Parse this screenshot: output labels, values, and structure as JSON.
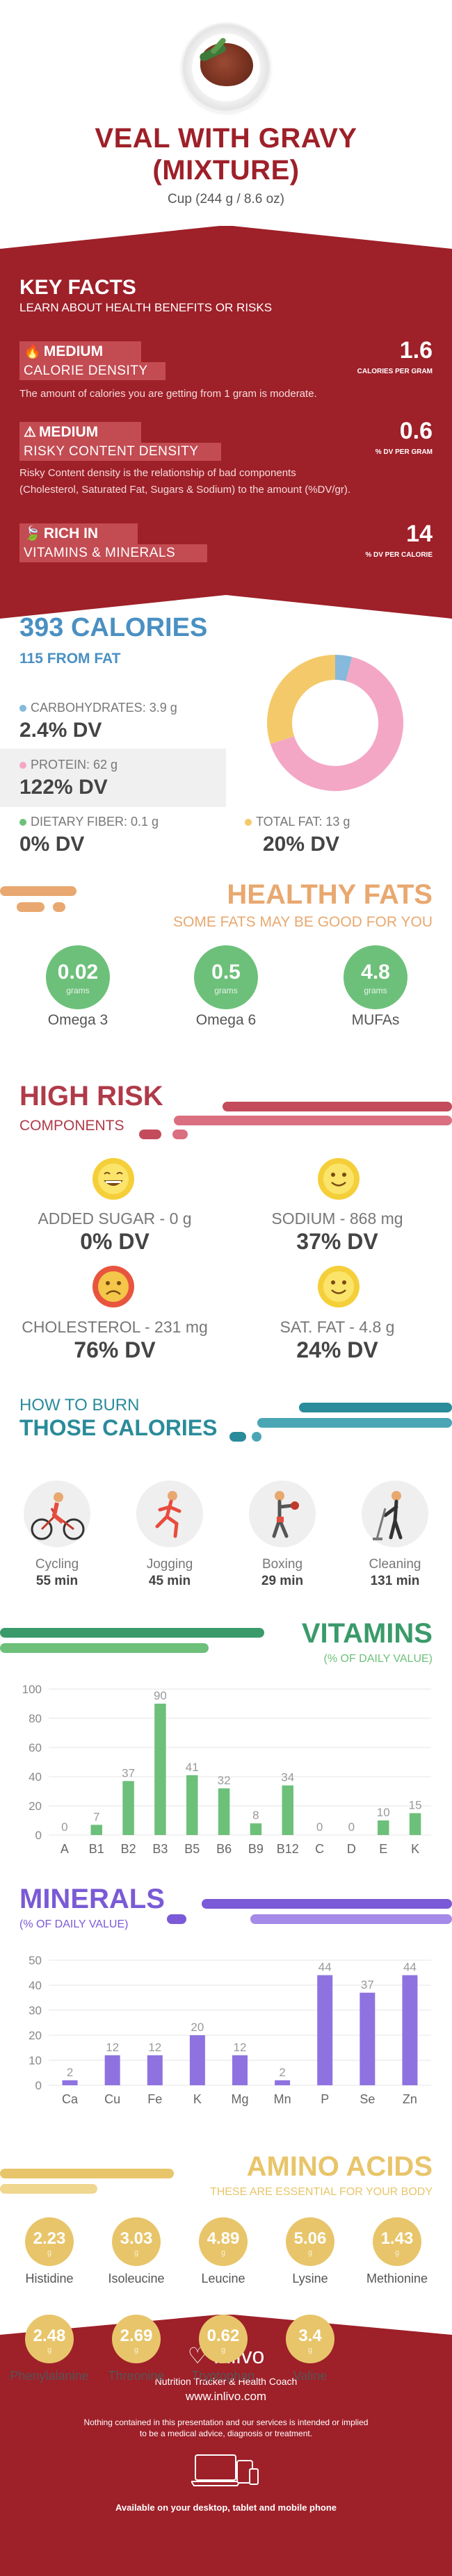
{
  "header": {
    "title_line1": "VEAL WITH GRAVY",
    "title_line2": "(MIXTURE)",
    "serving": "Cup (244 g / 8.6 oz)"
  },
  "key_facts": {
    "heading": "KEY FACTS",
    "subheading": "LEARN ABOUT HEALTH BENEFITS OR RISKS",
    "calorie_density": {
      "level": "MEDIUM",
      "label": "CALORIE DENSITY",
      "value": "1.6",
      "unit": "CALORIES PER GRAM",
      "desc": "The amount of calories you are getting from 1 gram is moderate."
    },
    "risky": {
      "level": "MEDIUM",
      "label": "RISKY CONTENT DENSITY",
      "value": "0.6",
      "unit": "% DV PER GRAM",
      "desc_line1": "Risky Content density is the relationship of bad components",
      "desc_line2": "(Cholesterol, Saturated Fat, Sugars & Sodium) to the amount (%DV/gr)."
    },
    "rich": {
      "level": "RICH  IN",
      "label": "VITAMINS & MINERALS",
      "value": "14",
      "unit": "% DV PER CALORIE"
    }
  },
  "calories": {
    "total": "393 CALORIES",
    "from_fat": "115 FROM FAT",
    "carbs_label": "CARBOHYDRATES: 3.9 g",
    "carbs_dv": "2.4% DV",
    "protein_label": "PROTEIN: 62 g",
    "protein_dv": "122% DV",
    "fiber_label": "DIETARY FIBER: 0.1 g",
    "fiber_dv": "0% DV",
    "fat_label": "TOTAL FAT: 13 g",
    "fat_dv": "20% DV",
    "donut_fractions": {
      "carbs": 0.04,
      "protein": 0.66,
      "fat": 0.3
    },
    "colors": {
      "carbs": "#86b9dc",
      "protein": "#f4a7c5",
      "fiber": "#6dc07a",
      "fat": "#f4c96a"
    }
  },
  "healthy_fats": {
    "title": "HEALTHY FATS",
    "subtitle": "SOME FATS MAY BE GOOD FOR YOU",
    "items": [
      {
        "value": "0.02",
        "unit": "grams",
        "name": "Omega 3"
      },
      {
        "value": "0.5",
        "unit": "grams",
        "name": "Omega 6"
      },
      {
        "value": "4.8",
        "unit": "grams",
        "name": "MUFAs"
      }
    ]
  },
  "high_risk": {
    "title": "HIGH RISK",
    "subtitle": "COMPONENTS",
    "items": [
      {
        "label": "ADDED SUGAR - 0 g",
        "dv": "0% DV",
        "mood": "happy"
      },
      {
        "label": "SODIUM - 868 mg",
        "dv": "37% DV",
        "mood": "smile"
      },
      {
        "label": "CHOLESTEROL - 231 mg",
        "dv": "76% DV",
        "mood": "sad"
      },
      {
        "label": "SAT. FAT - 4.8 g",
        "dv": "24% DV",
        "mood": "smile"
      }
    ]
  },
  "burn": {
    "title_line1": "HOW TO BURN",
    "title_line2": "THOSE CALORIES",
    "items": [
      {
        "name": "Cycling",
        "minutes": "55 min",
        "icon": "cycling-icon"
      },
      {
        "name": "Jogging",
        "minutes": "45 min",
        "icon": "jogging-icon"
      },
      {
        "name": "Boxing",
        "minutes": "29 min",
        "icon": "boxing-icon"
      },
      {
        "name": "Cleaning",
        "minutes": "131 min",
        "icon": "cleaning-icon"
      }
    ]
  },
  "vitamins": {
    "title": "VITAMINS",
    "subtitle": "(% OF DAILY VALUE)"
  },
  "minerals": {
    "title": "MINERALS",
    "subtitle": "(% OF DAILY VALUE)"
  },
  "chart_data": [
    {
      "type": "bar",
      "categories": [
        "A",
        "B1",
        "B2",
        "B3",
        "B5",
        "B6",
        "B9",
        "B12",
        "C",
        "D",
        "E",
        "K"
      ],
      "values": [
        0,
        7,
        37,
        90,
        41,
        32,
        8,
        34,
        0,
        0,
        10,
        15
      ],
      "value_labels": [
        "0",
        "7",
        "37",
        "90",
        "41",
        "32",
        "8",
        "34",
        "0",
        "0",
        "10",
        "15"
      ],
      "ylim": [
        0,
        100
      ],
      "yticks": [
        "0",
        "20",
        "40",
        "60",
        "80",
        "100"
      ],
      "color": "#6dc07a"
    },
    {
      "type": "bar",
      "categories": [
        "Ca",
        "Cu",
        "Fe",
        "K",
        "Mg",
        "Mn",
        "P",
        "Se",
        "Zn"
      ],
      "values": [
        2,
        12,
        12,
        20,
        12,
        2,
        44,
        37,
        44
      ],
      "value_labels": [
        "2",
        "12",
        "12",
        "20",
        "12",
        "2",
        "44",
        "37",
        "44"
      ],
      "ylim": [
        0,
        50
      ],
      "yticks": [
        "0",
        "10",
        "20",
        "30",
        "40",
        "50"
      ],
      "color": "#8e72e0"
    }
  ],
  "amino": {
    "title": "AMINO ACIDS",
    "subtitle": "THESE ARE ESSENTIAL FOR YOUR BODY",
    "unit": "g",
    "items": [
      {
        "value": "2.23",
        "name": "Histidine"
      },
      {
        "value": "3.03",
        "name": "Isoleucine"
      },
      {
        "value": "4.89",
        "name": "Leucine"
      },
      {
        "value": "5.06",
        "name": "Lysine"
      },
      {
        "value": "1.43",
        "name": "Methionine"
      },
      {
        "value": "2.48",
        "name": "Phenylalanine"
      },
      {
        "value": "2.69",
        "name": "Threonine"
      },
      {
        "value": "0.62",
        "name": "Tryptophan"
      },
      {
        "value": "3.4",
        "name": "Valine"
      }
    ]
  },
  "footer": {
    "brand": "inlivo",
    "tagline": "Nutrition Tracker & Health Coach",
    "url": "www.inlivo.com",
    "disclaimer_line1": "Nothing contained in this presentation and our services is intended or implied",
    "disclaimer_line2": "to be a medical advice, diagnosis or treatment.",
    "available": "Available on your desktop, tablet and mobile phone"
  }
}
